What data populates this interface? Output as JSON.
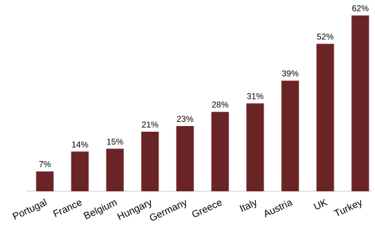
{
  "chart_data": {
    "type": "bar",
    "categories": [
      "Portugal",
      "France",
      "Belgium",
      "Hungary",
      "Germany",
      "Greece",
      "Italy",
      "Austria",
      "UK",
      "Turkey"
    ],
    "values": [
      7,
      14,
      15,
      21,
      23,
      28,
      31,
      39,
      52,
      62
    ],
    "value_labels": [
      "7%",
      "14%",
      "15%",
      "21%",
      "23%",
      "28%",
      "31%",
      "39%",
      "52%",
      "62%"
    ],
    "ylim": [
      0,
      64
    ],
    "grid": false,
    "legend": "none",
    "bar_color": "#6b2426"
  }
}
